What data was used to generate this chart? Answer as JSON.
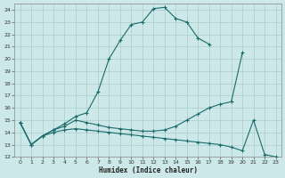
{
  "xlabel": "Humidex (Indice chaleur)",
  "bg_color": "#cce8e8",
  "grid_color": "#aacccc",
  "line_color": "#1a6b6b",
  "xlim": [
    -0.5,
    23.5
  ],
  "ylim": [
    12,
    24.5
  ],
  "xticks": [
    0,
    1,
    2,
    3,
    4,
    5,
    6,
    7,
    8,
    9,
    10,
    11,
    12,
    13,
    14,
    15,
    16,
    17,
    18,
    19,
    20,
    21,
    22,
    23
  ],
  "yticks": [
    12,
    13,
    14,
    15,
    16,
    17,
    18,
    19,
    20,
    21,
    22,
    23,
    24
  ],
  "line1_x": [
    0,
    1,
    2,
    3,
    4,
    5,
    6,
    7,
    8,
    9,
    10,
    11,
    12,
    13,
    14,
    15,
    16,
    17
  ],
  "line1_y": [
    14.8,
    13.0,
    13.7,
    14.2,
    14.7,
    15.3,
    15.6,
    17.3,
    20.0,
    21.5,
    22.8,
    23.0,
    24.1,
    24.2,
    23.3,
    23.0,
    21.7,
    21.2
  ],
  "line2_x": [
    0,
    1,
    2,
    3,
    4,
    5,
    6,
    7,
    8,
    9,
    10,
    11,
    12,
    13,
    14,
    15,
    16,
    17,
    18,
    19,
    20
  ],
  "line2_y": [
    14.8,
    13.0,
    13.7,
    14.2,
    14.5,
    15.0,
    14.8,
    14.6,
    14.4,
    14.3,
    14.2,
    14.1,
    14.1,
    14.2,
    14.5,
    15.0,
    15.5,
    16.0,
    16.3,
    16.5,
    20.5
  ],
  "line3_x": [
    0,
    1,
    2,
    3,
    4,
    5,
    6,
    7,
    8,
    9,
    10,
    11,
    12,
    13,
    14,
    15,
    16,
    17,
    18,
    19,
    20,
    21,
    22,
    23
  ],
  "line3_y": [
    14.8,
    13.0,
    13.7,
    14.0,
    14.2,
    14.3,
    14.2,
    14.1,
    14.0,
    13.9,
    13.8,
    13.7,
    13.6,
    13.5,
    13.4,
    13.3,
    13.2,
    13.1,
    13.0,
    12.8,
    12.5,
    15.0,
    12.2,
    12.0
  ]
}
